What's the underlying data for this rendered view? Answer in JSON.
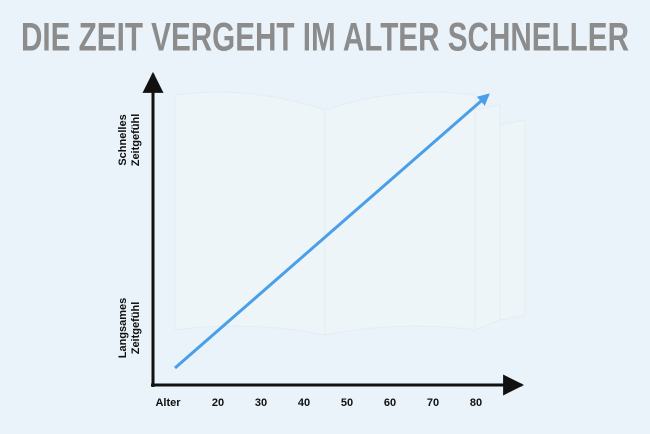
{
  "title": "DIE ZEIT VERGEHT IM ALTER SCHNELLER",
  "x_axis": {
    "label": "Alter",
    "ticks": [
      "20",
      "30",
      "40",
      "50",
      "60",
      "70",
      "80"
    ]
  },
  "y_axis": {
    "top_label": [
      "Schnelles",
      "Zeitgefühl"
    ],
    "bottom_label": [
      "Langsames",
      "Zeitgefühl"
    ]
  }
}
